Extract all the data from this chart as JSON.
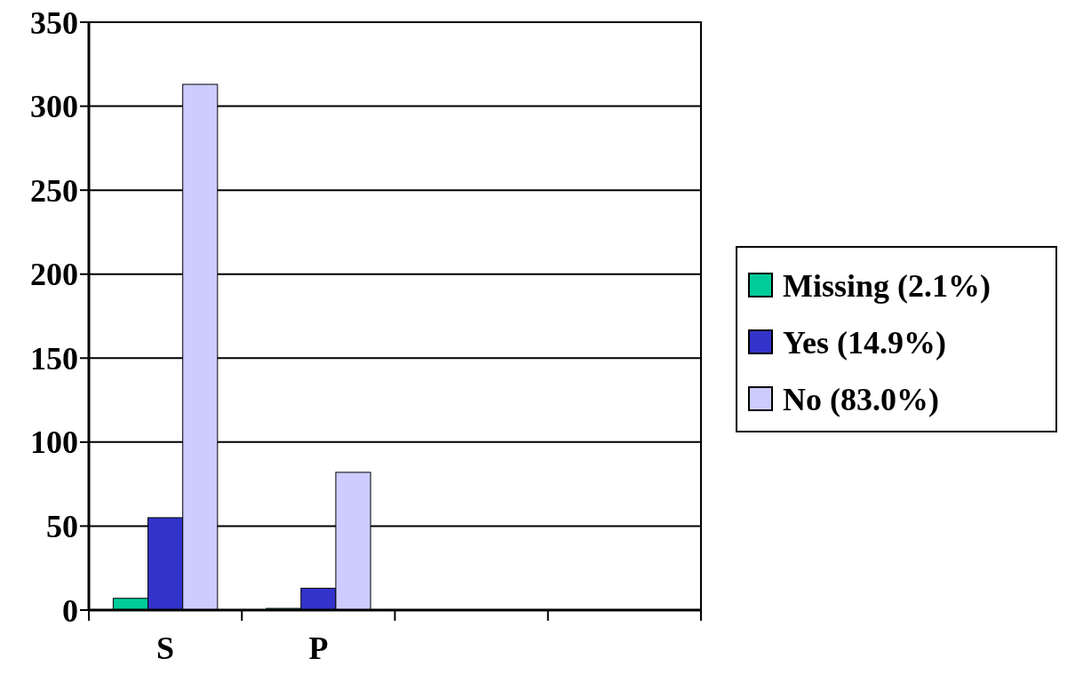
{
  "chart_data": {
    "type": "bar",
    "categories": [
      "S",
      "P",
      null,
      null
    ],
    "series": [
      {
        "name": "Missing (2.1%)",
        "color": "#00cc99",
        "values": [
          7,
          1,
          null,
          null
        ]
      },
      {
        "name": "Yes (14.9%)",
        "color": "#3333cc",
        "values": [
          55,
          13,
          null,
          null
        ]
      },
      {
        "name": "No (83.0%)",
        "color": "#ccccff",
        "values": [
          313,
          82,
          null,
          null
        ]
      }
    ],
    "ylim": [
      0,
      350
    ],
    "yticks": [
      0,
      50,
      100,
      150,
      200,
      250,
      300,
      350
    ],
    "grid": "y",
    "legend": "right"
  }
}
